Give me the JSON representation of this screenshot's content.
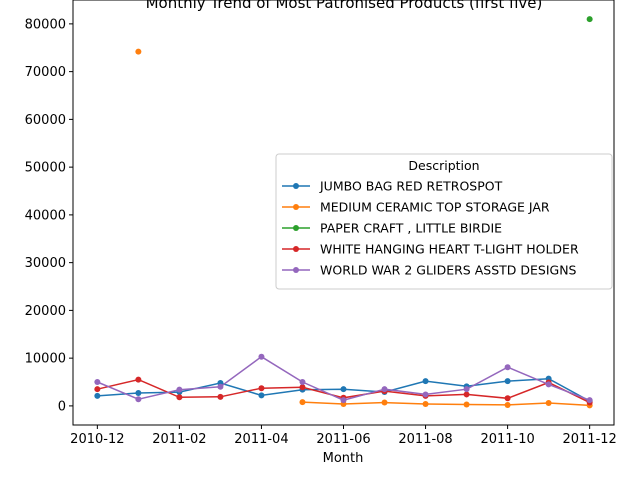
{
  "chart_data": {
    "type": "line",
    "title": "Monthly Trend of Most Patronised Products (first five)",
    "xlabel": "Month",
    "ylabel": "",
    "x": [
      "2010-12",
      "2011-01",
      "2011-02",
      "2011-03",
      "2011-04",
      "2011-05",
      "2011-06",
      "2011-07",
      "2011-08",
      "2011-09",
      "2011-10",
      "2011-11",
      "2011-12"
    ],
    "x_tick_labels": [
      "2010-12",
      "2011-02",
      "2011-04",
      "2011-06",
      "2011-08",
      "2011-10",
      "2011-12"
    ],
    "y_ticks": [
      0,
      10000,
      20000,
      30000,
      40000,
      50000,
      60000,
      70000,
      80000
    ],
    "y_tick_labels": [
      "0",
      "10000",
      "20000",
      "30000",
      "40000",
      "50000",
      "60000",
      "70000",
      "80000"
    ],
    "ylim": [
      -4000,
      85000
    ],
    "grid": false,
    "legend": {
      "title": "Description",
      "placement": "center-right"
    },
    "series": [
      {
        "name": "JUMBO BAG RED RETROSPOT",
        "color": "#1f77b4",
        "values": [
          2100,
          2700,
          2900,
          4800,
          2200,
          3400,
          3500,
          2900,
          5200,
          4100,
          5200,
          5700,
          1000
        ]
      },
      {
        "name": "MEDIUM CERAMIC TOP STORAGE JAR",
        "color": "#ff7f0e",
        "values": [
          null,
          74200,
          null,
          null,
          null,
          800,
          400,
          700,
          400,
          300,
          200,
          600,
          100
        ]
      },
      {
        "name": "PAPER CRAFT , LITTLE BIRDIE",
        "color": "#2ca02c",
        "values": [
          null,
          null,
          null,
          null,
          null,
          null,
          null,
          null,
          null,
          null,
          null,
          null,
          81000
        ]
      },
      {
        "name": "WHITE HANGING HEART T-LIGHT HOLDER",
        "color": "#d62728",
        "values": [
          3500,
          5500,
          1800,
          1900,
          3700,
          3900,
          1700,
          3100,
          2100,
          2400,
          1600,
          4900,
          700
        ]
      },
      {
        "name": "WORLD WAR 2 GLIDERS ASSTD DESIGNS",
        "color": "#9467bd",
        "values": [
          5000,
          1400,
          3400,
          4000,
          10300,
          5000,
          1200,
          3500,
          2400,
          3500,
          8100,
          4500,
          1200
        ]
      }
    ]
  }
}
